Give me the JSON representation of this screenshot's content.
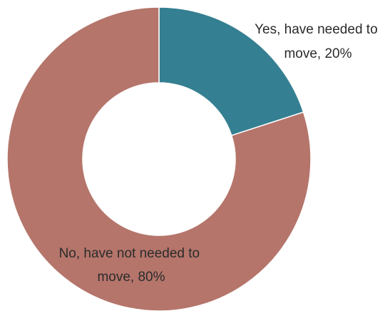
{
  "chart_data": {
    "type": "pie",
    "variant": "donut",
    "title": "",
    "categories": [
      "Yes, have needed to move",
      "No, have not needed to move"
    ],
    "values": [
      20,
      80
    ],
    "unit": "%",
    "colors": [
      "#347F91",
      "#B5756B"
    ],
    "labels": [
      {
        "line1": "Yes, have needed to",
        "line2": "move, 20%"
      },
      {
        "line1": "No, have not needed to",
        "line2": "move, 80%"
      }
    ]
  }
}
